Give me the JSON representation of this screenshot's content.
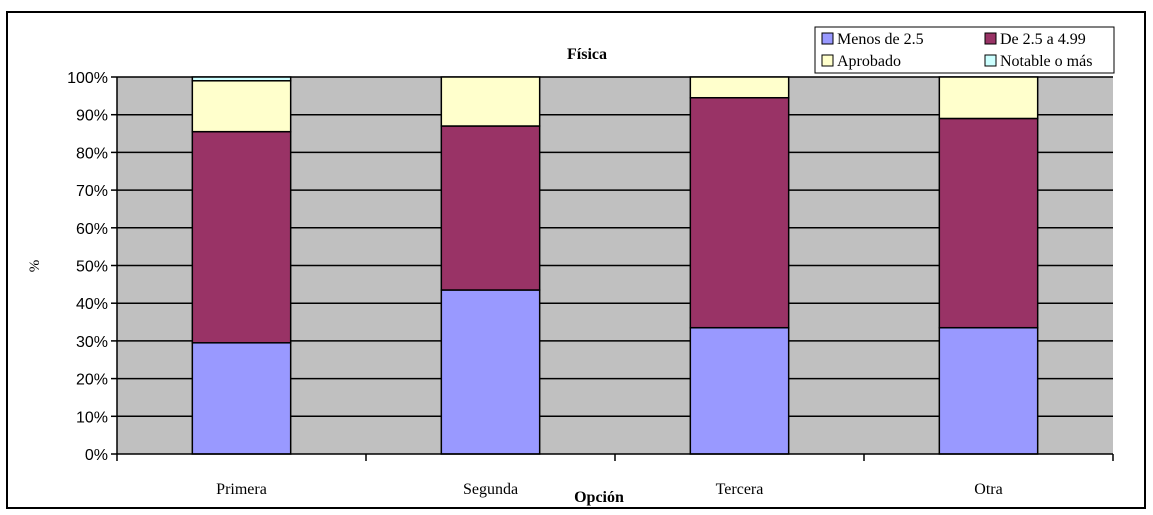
{
  "chart_data": {
    "type": "bar",
    "stacked": true,
    "title": "Física",
    "xlabel": "Opción",
    "ylabel": "%",
    "categories": [
      "Primera",
      "Segunda",
      "Tercera",
      "Otra"
    ],
    "ylim": [
      0,
      100
    ],
    "yticks": [
      "0%",
      "10%",
      "20%",
      "30%",
      "40%",
      "50%",
      "60%",
      "70%",
      "80%",
      "90%",
      "100%"
    ],
    "grid": true,
    "legend_position": "top-right",
    "series": [
      {
        "name": "Menos de 2.5",
        "color": "#9999ff",
        "values": [
          29.5,
          43.5,
          33.5,
          33.5
        ]
      },
      {
        "name": "De 2.5 a 4.99",
        "color": "#993366",
        "values": [
          56.0,
          43.5,
          61.0,
          55.5
        ]
      },
      {
        "name": "Aprobado",
        "color": "#ffffcc",
        "values": [
          13.5,
          13.0,
          5.5,
          11.0
        ]
      },
      {
        "name": "Notable o más",
        "color": "#ccffff",
        "values": [
          1.0,
          0.0,
          0.0,
          0.0
        ]
      }
    ],
    "colors": {
      "plot_background": "#c0c0c0",
      "gridline": "#000000",
      "bar_border": "#000000"
    }
  }
}
